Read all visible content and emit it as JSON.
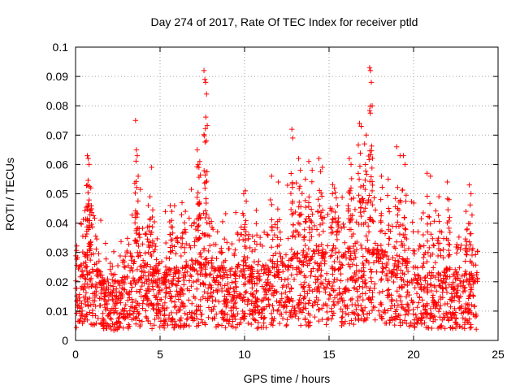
{
  "chart_data": {
    "type": "scatter",
    "title": "Day 274 of 2017, Rate Of TEC Index for receiver ptld",
    "xlabel": "GPS time / hours",
    "ylabel": "ROTI / TECUs",
    "xlim": [
      0,
      25
    ],
    "ylim": [
      0,
      0.1
    ],
    "x_ticks": [
      0,
      5,
      10,
      15,
      20,
      25
    ],
    "x_tick_labels": [
      "0",
      "5",
      "10",
      "15",
      "20",
      "25"
    ],
    "y_ticks": [
      0,
      0.01,
      0.02,
      0.03,
      0.04,
      0.05,
      0.06,
      0.07,
      0.08,
      0.09,
      0.1
    ],
    "y_tick_labels": [
      "0",
      "0.01",
      "0.02",
      "0.03",
      "0.04",
      "0.05",
      "0.06",
      "0.07",
      "0.08",
      "0.09",
      "0.1"
    ],
    "grid": true,
    "marker": "+",
    "marker_color": "#ff0000",
    "x_data_range": [
      0,
      23.8
    ],
    "series": [
      {
        "name": "ROTI",
        "color": "#ff0000",
        "baseline_points": {
          "x": [
            0.0,
            0.3,
            0.6,
            0.9,
            1.2,
            1.5,
            1.8,
            2.1,
            2.4,
            2.7,
            3.0,
            3.3,
            3.6,
            3.9,
            4.2,
            4.5,
            4.8,
            5.1,
            5.4,
            5.7,
            6.0,
            6.3,
            6.6,
            6.9,
            7.2,
            7.5,
            7.8,
            8.1,
            8.4,
            8.7,
            9.0,
            9.3,
            9.6,
            9.9,
            10.2,
            10.5,
            10.8,
            11.1,
            11.4,
            11.7,
            12.0,
            12.3,
            12.6,
            12.9,
            13.2,
            13.5,
            13.8,
            14.1,
            14.4,
            14.7,
            15.0,
            15.3,
            15.6,
            15.9,
            16.2,
            16.5,
            16.8,
            17.1,
            17.4,
            17.7,
            18.0,
            18.3,
            18.6,
            18.9,
            19.2,
            19.5,
            19.8,
            20.1,
            20.4,
            20.7,
            21.0,
            21.3,
            21.6,
            21.9,
            22.2,
            22.5,
            22.8,
            23.1,
            23.4,
            23.7
          ],
          "y": [
            0.015,
            0.018,
            0.02,
            0.022,
            0.018,
            0.014,
            0.013,
            0.012,
            0.012,
            0.014,
            0.016,
            0.017,
            0.019,
            0.018,
            0.017,
            0.016,
            0.016,
            0.015,
            0.016,
            0.017,
            0.016,
            0.016,
            0.017,
            0.018,
            0.019,
            0.02,
            0.02,
            0.019,
            0.017,
            0.016,
            0.016,
            0.016,
            0.017,
            0.018,
            0.017,
            0.016,
            0.016,
            0.017,
            0.017,
            0.018,
            0.018,
            0.019,
            0.019,
            0.02,
            0.02,
            0.02,
            0.019,
            0.02,
            0.02,
            0.021,
            0.021,
            0.02,
            0.02,
            0.02,
            0.021,
            0.021,
            0.022,
            0.022,
            0.023,
            0.022,
            0.021,
            0.02,
            0.019,
            0.019,
            0.018,
            0.018,
            0.018,
            0.017,
            0.017,
            0.017,
            0.016,
            0.016,
            0.016,
            0.016,
            0.016,
            0.016,
            0.015,
            0.015,
            0.015,
            0.015
          ]
        },
        "outliers": {
          "x": [
            0.7,
            0.75,
            0.8,
            0.9,
            3.55,
            3.6,
            3.65,
            4.3,
            4.4,
            4.5,
            5.6,
            5.7,
            6.3,
            6.5,
            7.2,
            7.25,
            7.3,
            7.35,
            7.6,
            7.65,
            7.7,
            7.75,
            9.95,
            10.05,
            11.6,
            12.0,
            12.8,
            12.85,
            13.2,
            13.3,
            13.6,
            13.8,
            14.0,
            14.4,
            14.6,
            15.2,
            15.5,
            16.2,
            16.3,
            16.8,
            16.9,
            17.1,
            17.2,
            17.4,
            17.45,
            17.5,
            17.55,
            18.1,
            18.5,
            19.0,
            19.2,
            19.4,
            19.5,
            20.8,
            21.0,
            21.5,
            22.0,
            22.1,
            23.1,
            23.3,
            23.4
          ],
          "y": [
            0.063,
            0.062,
            0.06,
            0.052,
            0.075,
            0.065,
            0.063,
            0.046,
            0.049,
            0.059,
            0.046,
            0.044,
            0.047,
            0.044,
            0.065,
            0.06,
            0.059,
            0.061,
            0.092,
            0.089,
            0.088,
            0.084,
            0.05,
            0.051,
            0.056,
            0.054,
            0.072,
            0.069,
            0.062,
            0.058,
            0.055,
            0.061,
            0.058,
            0.062,
            0.059,
            0.05,
            0.046,
            0.062,
            0.06,
            0.074,
            0.073,
            0.067,
            0.07,
            0.093,
            0.092,
            0.088,
            0.08,
            0.056,
            0.055,
            0.066,
            0.063,
            0.063,
            0.06,
            0.057,
            0.056,
            0.049,
            0.054,
            0.048,
            0.044,
            0.053,
            0.05
          ]
        }
      }
    ]
  }
}
